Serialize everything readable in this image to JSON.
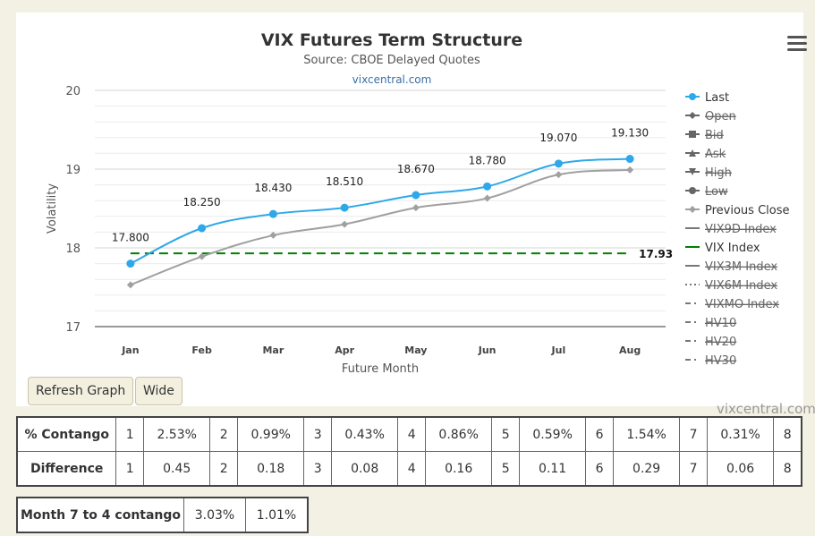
{
  "chart_data": {
    "type": "line",
    "title": "VIX Futures Term Structure",
    "subtitle": "Source: CBOE Delayed Quotes",
    "link": "vixcentral.com",
    "xlabel": "Future Month",
    "ylabel": "Volatility",
    "categories": [
      "Jan",
      "Feb",
      "Mar",
      "Apr",
      "May",
      "Jun",
      "Jul",
      "Aug"
    ],
    "ylim": [
      17,
      20
    ],
    "yticks": [
      "17",
      "18",
      "19",
      "20"
    ],
    "series": [
      {
        "name": "Last",
        "values": [
          17.8,
          18.25,
          18.43,
          18.51,
          18.67,
          18.78,
          19.07,
          19.13
        ],
        "labels": [
          "17.800",
          "18.250",
          "18.430",
          "18.510",
          "18.670",
          "18.780",
          "19.070",
          "19.130"
        ],
        "color": "#2ea8e8"
      },
      {
        "name": "Previous Close",
        "values": [
          17.53,
          17.89,
          18.16,
          18.3,
          18.51,
          18.63,
          18.93,
          18.99
        ],
        "color": "#a0a0a0"
      }
    ],
    "vix_index": {
      "name": "VIX Index",
      "value": 17.93,
      "label": "17.93",
      "color": "#008000"
    },
    "legend_position": "right",
    "legend": [
      {
        "label": "Last",
        "marker": "circle",
        "color": "#2ea8e8",
        "hidden": false
      },
      {
        "label": "Open",
        "marker": "diamond",
        "color": "#666666",
        "hidden": true
      },
      {
        "label": "Bid",
        "marker": "square",
        "color": "#666666",
        "hidden": true
      },
      {
        "label": "Ask",
        "marker": "triangle",
        "color": "#666666",
        "hidden": true
      },
      {
        "label": "High",
        "marker": "triangle-down",
        "color": "#666666",
        "hidden": true
      },
      {
        "label": "Low",
        "marker": "circle",
        "color": "#666666",
        "hidden": true
      },
      {
        "label": "Previous Close",
        "marker": "diamond",
        "color": "#a0a0a0",
        "hidden": false
      },
      {
        "label": "VIX9D Index",
        "marker": "solid",
        "color": "#777777",
        "hidden": true
      },
      {
        "label": "VIX Index",
        "marker": "solid",
        "color": "#008000",
        "hidden": false
      },
      {
        "label": "VIX3M Index",
        "marker": "solid",
        "color": "#777777",
        "hidden": true
      },
      {
        "label": "VIX6M Index",
        "marker": "dotted",
        "color": "#777777",
        "hidden": true
      },
      {
        "label": "VIXMO Index",
        "marker": "dashdot",
        "color": "#777777",
        "hidden": true
      },
      {
        "label": "HV10",
        "marker": "dashdot",
        "color": "#777777",
        "hidden": true
      },
      {
        "label": "HV20",
        "marker": "dashdot",
        "color": "#777777",
        "hidden": true
      },
      {
        "label": "HV30",
        "marker": "dashdot",
        "color": "#777777",
        "hidden": true
      }
    ]
  },
  "buttons": {
    "refresh": "Refresh Graph",
    "wide": "Wide"
  },
  "credit": "vixcentral.com",
  "contango_table": {
    "rows": [
      {
        "label": "% Contango",
        "cells": [
          [
            "1",
            "2.53%"
          ],
          [
            "2",
            "0.99%"
          ],
          [
            "3",
            "0.43%"
          ],
          [
            "4",
            "0.86%"
          ],
          [
            "5",
            "0.59%"
          ],
          [
            "6",
            "1.54%"
          ],
          [
            "7",
            "0.31%"
          ]
        ],
        "last": "8"
      },
      {
        "label": "Difference",
        "cells": [
          [
            "1",
            "0.45"
          ],
          [
            "2",
            "0.18"
          ],
          [
            "3",
            "0.08"
          ],
          [
            "4",
            "0.16"
          ],
          [
            "5",
            "0.11"
          ],
          [
            "6",
            "0.29"
          ],
          [
            "7",
            "0.06"
          ]
        ],
        "last": "8"
      }
    ]
  },
  "month_table": {
    "label": "Month 7 to 4 contango",
    "values": [
      "3.03%",
      "1.01%"
    ]
  }
}
